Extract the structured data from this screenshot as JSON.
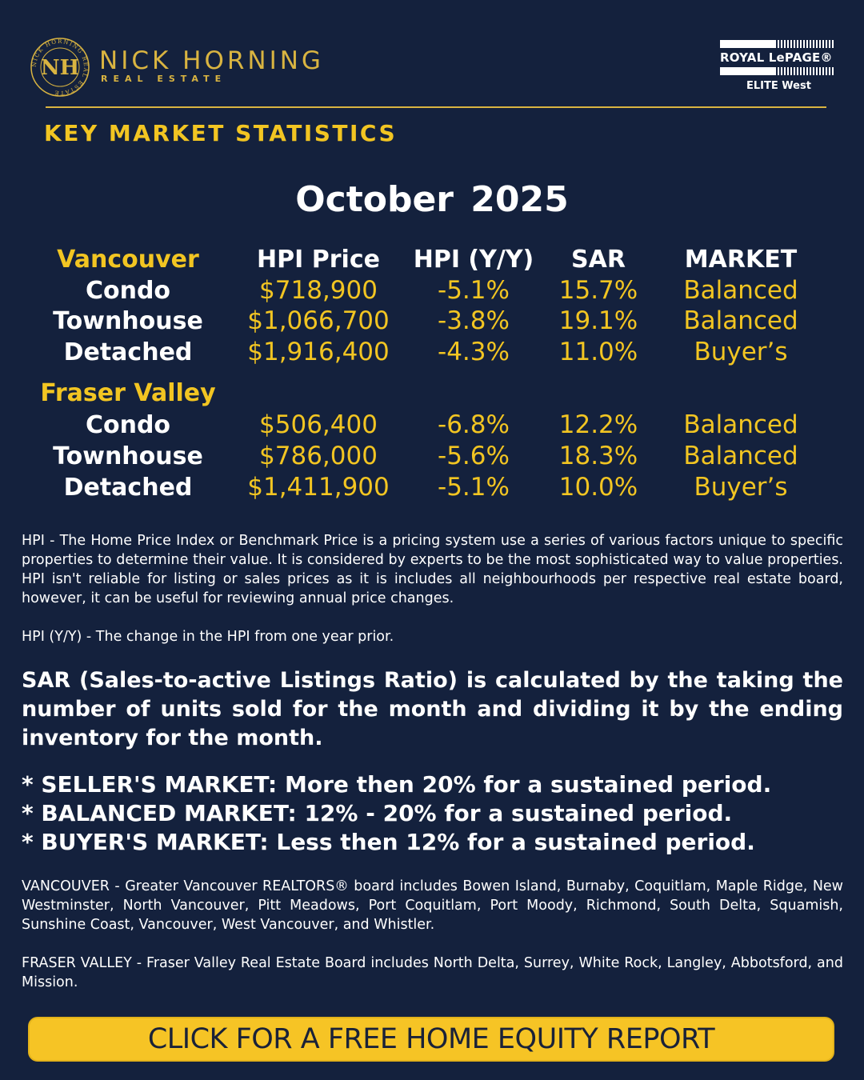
{
  "brand": {
    "name": "NICK HORNING",
    "tagline": "REAL ESTATE",
    "seal_text": "NICK HORNING REAL ESTATE",
    "monogram": "NH",
    "partner_name": "ROYAL LePAGE®",
    "partner_sub": "ELITE West"
  },
  "colors": {
    "background": "#14213d",
    "gold": "#f2c522",
    "muted_gold": "#d9b441",
    "text": "#ffffff"
  },
  "title": "KEY MARKET STATISTICS",
  "period": "October 2025",
  "table": {
    "columns": [
      "HPI Price",
      "HPI (Y/Y)",
      "SAR",
      "MARKET"
    ],
    "regions": [
      {
        "name": "Vancouver",
        "rows": [
          {
            "type": "Condo",
            "price": "$718,900",
            "yoy": "-5.1%",
            "sar": "15.7%",
            "market": "Balanced"
          },
          {
            "type": "Townhouse",
            "price": "$1,066,700",
            "yoy": "-3.8%",
            "sar": "19.1%",
            "market": "Balanced"
          },
          {
            "type": "Detached",
            "price": "$1,916,400",
            "yoy": "-4.3%",
            "sar": "11.0%",
            "market": "Buyer’s"
          }
        ]
      },
      {
        "name": "Fraser Valley",
        "rows": [
          {
            "type": "Condo",
            "price": "$506,400",
            "yoy": "-6.8%",
            "sar": "12.2%",
            "market": "Balanced"
          },
          {
            "type": "Townhouse",
            "price": "$786,000",
            "yoy": "-5.6%",
            "sar": "18.3%",
            "market": "Balanced"
          },
          {
            "type": "Detached",
            "price": "$1,411,900",
            "yoy": "-5.1%",
            "sar": "10.0%",
            "market": "Buyer’s"
          }
        ]
      }
    ]
  },
  "notes": {
    "hpi": "HPI - The Home Price Index or Benchmark Price is a pricing system use a series of various factors unique to specific properties to determine their value. It is considered by experts to be the most sophisticated way to value properties. HPI isn't reliable for listing or sales prices as it is includes all neighbourhoods per respective real estate board, however, it can be useful for reviewing annual price changes.",
    "hpi_yoy": "HPI (Y/Y) - The change in the HPI from one year prior.",
    "sar": "SAR (Sales-to-active Listings Ratio) is calculated by the taking the number of units sold for the month and dividing it by the ending inventory for the month.",
    "markets": [
      "* SELLER'S MARKET: More then 20% for a sustained period.",
      "* BALANCED MARKET: 12% - 20% for a sustained period.",
      "* BUYER'S MARKET: Less then 12% for a sustained period."
    ],
    "vancouver": "VANCOUVER - Greater Vancouver REALTORS® board includes Bowen Island, Burnaby, Coquitlam, Maple Ridge, New Westminster, North Vancouver, Pitt Meadows, Port Coquitlam, Port Moody, Richmond, South Delta, Squamish, Sunshine Coast, Vancouver, West Vancouver, and Whistler.",
    "fraser": "FRASER VALLEY - Fraser Valley Real Estate Board includes North Delta, Surrey, White Rock, Langley, Abbotsford, and Mission."
  },
  "cta": {
    "label": "CLICK FOR A FREE HOME EQUITY REPORT"
  }
}
